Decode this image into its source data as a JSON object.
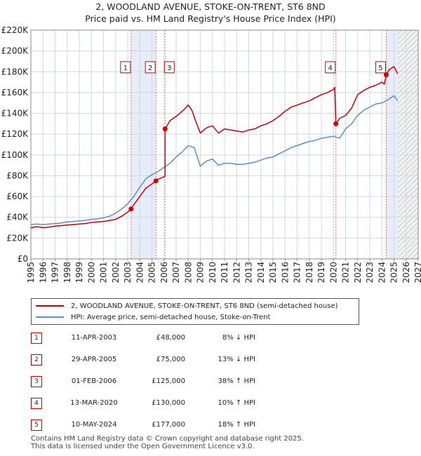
{
  "title_line1": "2, WOODLAND AVENUE, STOKE-ON-TRENT, ST6 8ND",
  "title_line2": "Price paid vs. HM Land Registry's House Price Index (HPI)",
  "colors": {
    "property": "#cc0000",
    "hpi": "#5b8fc9",
    "shade": "#e6ecf8",
    "grid": "#cfd7e8",
    "marker_line": "#e07070"
  },
  "chart_data": {
    "type": "line",
    "xlim": [
      1995,
      2027
    ],
    "ylim": [
      0,
      220000
    ],
    "yticks": [
      {
        "value": 0,
        "label": "£0"
      },
      {
        "value": 20000,
        "label": "£20K"
      },
      {
        "value": 40000,
        "label": "£40K"
      },
      {
        "value": 60000,
        "label": "£60K"
      },
      {
        "value": 80000,
        "label": "£80K"
      },
      {
        "value": 100000,
        "label": "£100K"
      },
      {
        "value": 120000,
        "label": "£120K"
      },
      {
        "value": 140000,
        "label": "£140K"
      },
      {
        "value": 160000,
        "label": "£160K"
      },
      {
        "value": 180000,
        "label": "£180K"
      },
      {
        "value": 200000,
        "label": "£200K"
      },
      {
        "value": 220000,
        "label": "£220K"
      }
    ],
    "xticks": [
      "1995",
      "1996",
      "1997",
      "1998",
      "1999",
      "2000",
      "2001",
      "2002",
      "2003",
      "2004",
      "2005",
      "2006",
      "2007",
      "2008",
      "2009",
      "2010",
      "2011",
      "2012",
      "2013",
      "2014",
      "2015",
      "2016",
      "2017",
      "2018",
      "2019",
      "2020",
      "2021",
      "2022",
      "2023",
      "2024",
      "2025",
      "2026",
      "2027"
    ],
    "hatch_from": 2025.33,
    "series": [
      {
        "name": "2, WOODLAND AVENUE, STOKE-ON-TRENT, ST6 8ND (semi-detached house)",
        "x": [
          1995.0,
          1995.5,
          1996.0,
          1996.5,
          1997.0,
          1997.5,
          1998.0,
          1998.5,
          1999.0,
          1999.5,
          2000.0,
          2000.5,
          2001.0,
          2001.5,
          2002.0,
          2002.5,
          2003.0,
          2003.28,
          2003.5,
          2004.0,
          2004.5,
          2005.0,
          2005.33,
          2005.6,
          2006.0,
          2006.09,
          2006.09,
          2006.5,
          2007.0,
          2007.3,
          2007.6,
          2008.0,
          2008.3,
          2008.6,
          2009.0,
          2009.5,
          2010.0,
          2010.5,
          2011.0,
          2011.5,
          2012.0,
          2012.5,
          2013.0,
          2013.5,
          2014.0,
          2014.5,
          2015.0,
          2015.5,
          2016.0,
          2016.5,
          2017.0,
          2017.5,
          2018.0,
          2018.5,
          2019.0,
          2019.5,
          2020.0,
          2020.1,
          2020.2,
          2020.5,
          2021.0,
          2021.5,
          2022.0,
          2022.5,
          2023.0,
          2023.5,
          2024.0,
          2024.2,
          2024.36,
          2024.6,
          2025.0,
          2025.3
        ],
        "values": [
          30000,
          31000,
          30000,
          30500,
          31500,
          32000,
          32500,
          33000,
          33500,
          34000,
          35000,
          35500,
          36000,
          37000,
          38000,
          41000,
          45000,
          48000,
          52000,
          60000,
          68000,
          72000,
          75000,
          77000,
          79000,
          80000,
          125000,
          133000,
          137000,
          140000,
          143000,
          148000,
          143000,
          133000,
          121000,
          126000,
          128000,
          121000,
          125000,
          124000,
          123000,
          122000,
          124000,
          125000,
          128000,
          130000,
          133000,
          137000,
          142000,
          146000,
          148000,
          150000,
          152000,
          155000,
          158000,
          160000,
          163000,
          165000,
          130000,
          135000,
          138000,
          145000,
          158000,
          162000,
          165000,
          167000,
          170000,
          168000,
          177000,
          182000,
          185000,
          178000
        ]
      },
      {
        "name": "HPI: Average price, semi-detached house, Stoke-on-Trent",
        "x": [
          1995.0,
          1995.5,
          1996.0,
          1996.5,
          1997.0,
          1997.5,
          1998.0,
          1998.5,
          1999.0,
          1999.5,
          2000.0,
          2000.5,
          2001.0,
          2001.5,
          2002.0,
          2002.5,
          2003.0,
          2003.5,
          2004.0,
          2004.5,
          2005.0,
          2005.5,
          2006.0,
          2006.5,
          2007.0,
          2007.5,
          2008.0,
          2008.5,
          2009.0,
          2009.5,
          2010.0,
          2010.5,
          2011.0,
          2011.5,
          2012.0,
          2012.5,
          2013.0,
          2013.5,
          2014.0,
          2014.5,
          2015.0,
          2015.5,
          2016.0,
          2016.5,
          2017.0,
          2017.5,
          2018.0,
          2018.5,
          2019.0,
          2019.5,
          2020.0,
          2020.5,
          2021.0,
          2021.5,
          2022.0,
          2022.5,
          2023.0,
          2023.5,
          2024.0,
          2024.5,
          2025.0,
          2025.3
        ],
        "values": [
          33000,
          33500,
          33000,
          33500,
          34000,
          34500,
          35500,
          36000,
          36500,
          37000,
          38000,
          38500,
          39500,
          41000,
          44000,
          48000,
          53000,
          60000,
          69000,
          77000,
          81000,
          84000,
          88000,
          92000,
          98000,
          103000,
          109000,
          107000,
          89000,
          94000,
          96000,
          90000,
          92000,
          92000,
          91000,
          91000,
          92000,
          93000,
          95000,
          97000,
          98000,
          101000,
          104000,
          107000,
          109000,
          111000,
          113000,
          114000,
          116000,
          117000,
          118000,
          116000,
          125000,
          130000,
          138000,
          143000,
          146000,
          149000,
          150000,
          153000,
          157000,
          152000
        ]
      }
    ],
    "transactions": [
      {
        "label": "1",
        "date": "11-APR-2003",
        "price": "£48,000",
        "hpi": "8% ↓ HPI",
        "x": 2003.28,
        "value": 48000
      },
      {
        "label": "2",
        "date": "29-APR-2005",
        "price": "£75,000",
        "hpi": "13% ↓ HPI",
        "x": 2005.33,
        "value": 75000
      },
      {
        "label": "3",
        "date": "01-FEB-2006",
        "price": "£125,000",
        "hpi": "38% ↑ HPI",
        "x": 2006.09,
        "value": 125000
      },
      {
        "label": "4",
        "date": "13-MAR-2020",
        "price": "£130,000",
        "hpi": "10% ↑ HPI",
        "x": 2020.2,
        "value": 130000
      },
      {
        "label": "5",
        "date": "10-MAY-2024",
        "price": "£177,000",
        "hpi": "18% ↑ HPI",
        "x": 2024.36,
        "value": 177000
      }
    ],
    "shaded_ranges": [
      [
        2003.28,
        2005.33
      ],
      [
        2006.09,
        2006.09
      ],
      [
        2020.2,
        2020.2
      ],
      [
        2024.36,
        2025.33
      ]
    ]
  },
  "legend": {
    "property_label": "2, WOODLAND AVENUE, STOKE-ON-TRENT, ST6 8ND (semi-detached house)",
    "hpi_label": "HPI: Average price, semi-detached house, Stoke-on-Trent"
  },
  "footer": {
    "line1": "Contains HM Land Registry data © Crown copyright and database right 2025.",
    "line2": "This data is licensed under the Open Government Licence v3.0."
  }
}
